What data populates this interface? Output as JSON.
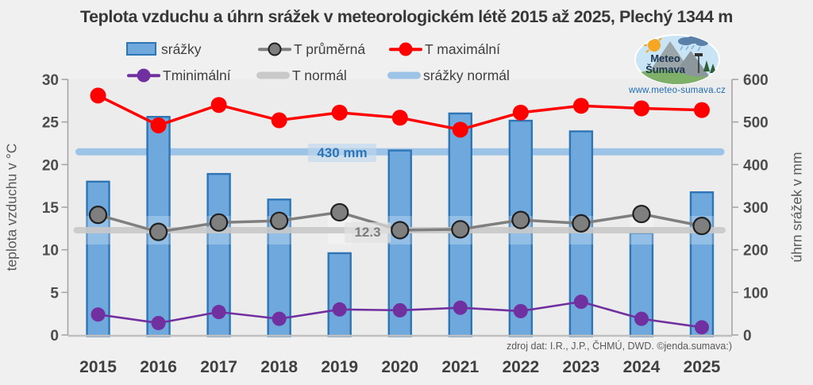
{
  "title": "Teplota vzduchu a úhrn srážek v meteorologickém létě 2015 až 2025, Plechý 1344 m",
  "legend": {
    "items": [
      {
        "label": "srážky",
        "swatch": "bar"
      },
      {
        "label": "T průměrná",
        "swatch": "line-dot"
      },
      {
        "label": "T maximální",
        "swatch": "line-dot"
      },
      {
        "label": "Tminimální",
        "swatch": "line-dot"
      },
      {
        "label": "T normál",
        "swatch": "thick-line"
      },
      {
        "label": "srážky normál",
        "swatch": "thick-line"
      }
    ]
  },
  "logo": {
    "line1": "Meteo",
    "line2": "Šumava",
    "url": "www.meteo-sumava.cz"
  },
  "source": "zdroj dat: I.R., J.P., ČHMÚ, DWD. ©jenda.sumava:)",
  "colors": {
    "bar_fill": "#6FA8DC",
    "bar_border": "#2E75B6",
    "t_max": "#FE0000",
    "t_avg": "#7F7F7F",
    "t_avg_marker_border": "#202020",
    "t_min": "#7030A0",
    "t_normal": "#C9C9C9",
    "precip_normal": "#9DC3E6",
    "axis_line": "#A6A6A6",
    "baseline": "#BFBFBF",
    "tick_text": "#4D4D4D",
    "plot_bg": "#ECECEC"
  },
  "chart_data": {
    "type": "bar",
    "subtype": "combo-bar-lines",
    "title": "Teplota vzduchu a úhrn srážek v meteorologickém létě 2015 až 2025, Plechý 1344 m",
    "categories": [
      "2015",
      "2016",
      "2017",
      "2018",
      "2019",
      "2020",
      "2021",
      "2022",
      "2023",
      "2024",
      "2025"
    ],
    "series": [
      {
        "name": "srážky",
        "type": "bar",
        "axis": "right",
        "unit": "mm",
        "color": "#6FA8DC",
        "border_color": "#2E75B6",
        "values": [
          360,
          512,
          378,
          318,
          192,
          433,
          520,
          503,
          478,
          239,
          335
        ]
      },
      {
        "name": "T průměrná",
        "type": "line",
        "axis": "left",
        "unit": "°C",
        "color": "#7F7F7F",
        "marker_color": "#7F7F7F",
        "marker_border": "#202020",
        "values": [
          14.1,
          12.1,
          13.2,
          13.4,
          14.4,
          12.3,
          12.4,
          13.5,
          13.1,
          14.2,
          12.8
        ]
      },
      {
        "name": "T maximální",
        "type": "line",
        "axis": "left",
        "unit": "°C",
        "color": "#FE0000",
        "marker_color": "#FE0000",
        "values": [
          28.1,
          24.6,
          27.0,
          25.2,
          26.1,
          25.5,
          24.1,
          26.1,
          26.9,
          26.6,
          26.4
        ]
      },
      {
        "name": "Tminimální",
        "type": "line",
        "axis": "left",
        "unit": "°C",
        "color": "#7030A0",
        "marker_color": "#7030A0",
        "values": [
          2.4,
          1.4,
          2.7,
          1.9,
          3.0,
          2.9,
          3.2,
          2.8,
          3.9,
          1.9,
          0.9
        ]
      },
      {
        "name": "T normál",
        "type": "reference-line",
        "axis": "left",
        "color": "#C9C9C9",
        "value": 12.3
      },
      {
        "name": "srážky normál",
        "type": "reference-line",
        "axis": "right",
        "color": "#9DC3E6",
        "value": 430
      }
    ],
    "left_axis": {
      "label": "teplota vzduchu v °C",
      "min": 0,
      "max": 30,
      "step": 5
    },
    "right_axis": {
      "label": "úhrn srážek v  mm",
      "min": 0,
      "max": 600,
      "step": 100
    },
    "annotations": [
      {
        "text": "430 mm",
        "target": "srážky normál",
        "value": 430
      },
      {
        "text": "12.3",
        "target": "T normál",
        "value": 12.3
      }
    ],
    "grid": false,
    "legend_position": "top"
  }
}
